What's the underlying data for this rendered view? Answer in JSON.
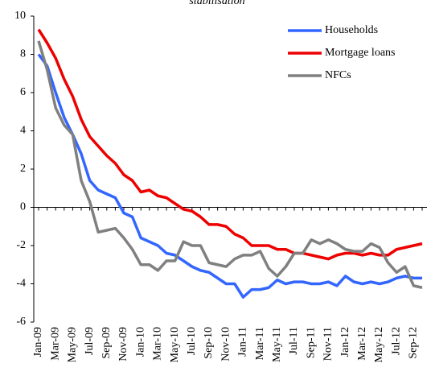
{
  "chart_data": {
    "type": "line",
    "title": "stabilisation",
    "categories": [
      "Jan-09",
      null,
      "Mar-09",
      null,
      "May-09",
      null,
      "Jul-09",
      null,
      "Sep-09",
      null,
      "Nov-09",
      null,
      "Jan-10",
      null,
      "Mar-10",
      null,
      "May-10",
      null,
      "Jul-10",
      null,
      "Sep-10",
      null,
      "Nov-10",
      null,
      "Jan-11",
      null,
      "Mar-11",
      null,
      "May-11",
      null,
      "Jul-11",
      null,
      "Sep-11",
      null,
      "Nov-11",
      null,
      "Jan-12",
      null,
      "Mar-12",
      null,
      "May-12",
      null,
      "Jul-12",
      null,
      "Sep-12",
      null
    ],
    "series": [
      {
        "name": "Households",
        "color": "#3366ff",
        "values": [
          8.0,
          7.4,
          6.0,
          4.7,
          3.8,
          2.8,
          1.4,
          0.9,
          0.7,
          0.5,
          -0.3,
          -0.5,
          -1.6,
          -1.8,
          -2.0,
          -2.4,
          -2.5,
          -2.8,
          -3.1,
          -3.3,
          -3.4,
          -3.7,
          -4.0,
          -4.0,
          -4.7,
          -4.3,
          -4.3,
          -4.2,
          -3.8,
          -4.0,
          -3.9,
          -3.9,
          -4.0,
          -4.0,
          -3.9,
          -4.1,
          -3.6,
          -3.9,
          -4.0,
          -3.9,
          -4.0,
          -3.9,
          -3.7,
          -3.6,
          -3.7,
          -3.7
        ]
      },
      {
        "name": "Mortgage loans",
        "color": "#ee0000",
        "values": [
          9.3,
          8.6,
          7.8,
          6.7,
          5.8,
          4.6,
          3.7,
          3.2,
          2.7,
          2.3,
          1.7,
          1.4,
          0.8,
          0.9,
          0.6,
          0.5,
          0.2,
          -0.1,
          -0.2,
          -0.5,
          -0.9,
          -0.9,
          -1.0,
          -1.4,
          -1.6,
          -2.0,
          -2.0,
          -2.0,
          -2.2,
          -2.2,
          -2.4,
          -2.4,
          -2.5,
          -2.6,
          -2.7,
          -2.5,
          -2.4,
          -2.4,
          -2.5,
          -2.4,
          -2.5,
          -2.5,
          -2.2,
          -2.1,
          -2.0,
          -1.9
        ]
      },
      {
        "name": "NFCs",
        "color": "#808080",
        "values": [
          8.7,
          7.2,
          5.2,
          4.3,
          3.8,
          1.4,
          0.3,
          -1.3,
          -1.2,
          -1.1,
          -1.6,
          -2.2,
          -3.0,
          -3.0,
          -3.3,
          -2.8,
          -2.8,
          -1.8,
          -2.0,
          -2.0,
          -2.9,
          -3.0,
          -3.1,
          -2.7,
          -2.5,
          -2.5,
          -2.3,
          -3.2,
          -3.6,
          -3.1,
          -2.4,
          -2.4,
          -1.7,
          -1.9,
          -1.7,
          -1.9,
          -2.2,
          -2.3,
          -2.3,
          -1.9,
          -2.1,
          -2.9,
          -3.4,
          -3.1,
          -4.1,
          -4.2
        ]
      }
    ],
    "ylim": [
      -6,
      10
    ],
    "yticks": [
      -6,
      -4,
      -2,
      0,
      2,
      4,
      6,
      8,
      10
    ],
    "grid": false,
    "legend": "upper right"
  }
}
